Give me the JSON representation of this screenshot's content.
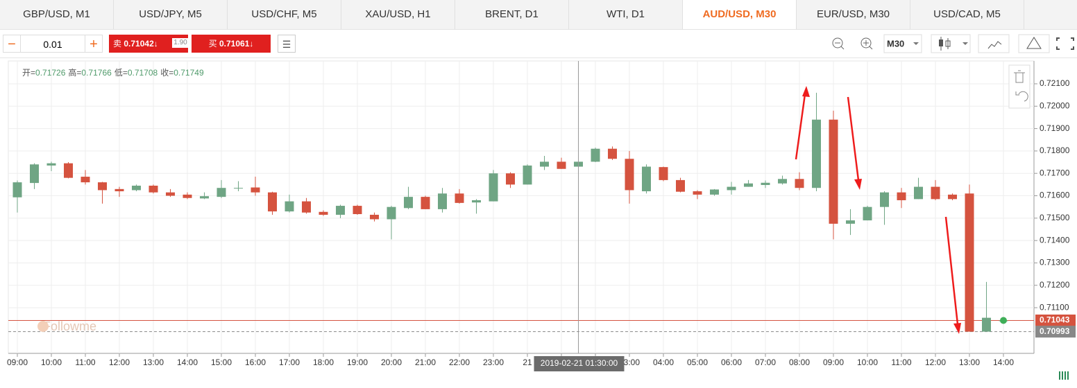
{
  "tabs": [
    "GBP/USD, M1",
    "USD/JPY, M5",
    "USD/CHF, M5",
    "XAU/USD, H1",
    "BRENT, D1",
    "WTI, D1",
    "AUD/USD, M30",
    "EUR/USD, M30",
    "USD/CAD, M5"
  ],
  "toolbar": {
    "minus": "−",
    "lot": "0.01",
    "plus": "+",
    "sell": {
      "label": "卖",
      "price": "0.71042↓"
    },
    "spread": "1.90",
    "buy": {
      "label": "买",
      "price": "0.71061↓"
    },
    "timeframe": "M30"
  },
  "chart_data": {
    "type": "candlestick",
    "ohlc_info": [
      {
        "label": "开=",
        "value": "0.71726"
      },
      {
        "label": "高=",
        "value": "0.71766"
      },
      {
        "label": "低=",
        "value": "0.71708"
      },
      {
        "label": "收=",
        "value": "0.71749"
      }
    ],
    "watermark": "Followme",
    "crosshair_label": "2019-02-21 01:30:00",
    "x_labels": [
      "09:00",
      "10:00",
      "11:00",
      "12:00",
      "13:00",
      "14:00",
      "15:00",
      "16:00",
      "17:00",
      "18:00",
      "19:00",
      "20:00",
      "21:00",
      "22:00",
      "23:00",
      "21",
      null,
      null,
      "03:00",
      "04:00",
      "05:00",
      "06:00",
      "07:00",
      "08:00",
      "09:00",
      "10:00",
      "11:00",
      "12:00",
      "13:00",
      "14:00"
    ],
    "open": [
      0.71593,
      0.71657,
      0.71735,
      0.71745,
      0.71685,
      0.7166,
      0.7163,
      0.71625,
      0.71645,
      0.71615,
      0.71605,
      0.71588,
      0.71595,
      0.71632,
      0.71637,
      0.71615,
      0.7153,
      0.71575,
      0.71528,
      0.71515,
      0.71555,
      0.71515,
      0.71495,
      0.71545,
      0.71595,
      0.7154,
      0.7161,
      0.7157,
      0.71575,
      0.717,
      0.7165,
      0.7173,
      0.71752,
      0.7173,
      0.71752,
      0.7181,
      0.71765,
      0.7162,
      0.71728,
      0.7167,
      0.7162,
      0.71605,
      0.71625,
      0.7164,
      0.71648,
      0.71655,
      0.71675,
      0.71635,
      0.7194,
      0.71475,
      0.7149,
      0.7155,
      0.71615,
      0.71585,
      0.7164,
      0.71605,
      0.7161,
      0.70993,
      0.7104
    ],
    "high": [
      0.71668,
      0.71745,
      0.71752,
      0.7175,
      0.71715,
      0.71662,
      0.7164,
      0.7165,
      0.7165,
      0.7163,
      0.71615,
      0.71615,
      0.7167,
      0.71665,
      0.71685,
      0.71618,
      0.71605,
      0.7159,
      0.71535,
      0.7156,
      0.7156,
      0.71525,
      0.71555,
      0.7164,
      0.716,
      0.71635,
      0.7163,
      0.71585,
      0.71715,
      0.71705,
      0.7174,
      0.71778,
      0.7177,
      0.7176,
      0.71815,
      0.7182,
      0.718,
      0.7174,
      0.7173,
      0.7168,
      0.71625,
      0.7163,
      0.71662,
      0.7167,
      0.71668,
      0.7169,
      0.71705,
      0.7206,
      0.7198,
      0.7154,
      0.71555,
      0.7162,
      0.71635,
      0.7168,
      0.7167,
      0.7161,
      0.7165,
      0.71215,
      0.7105
    ],
    "low": [
      0.71525,
      0.7163,
      0.7171,
      0.71678,
      0.7165,
      0.71565,
      0.71595,
      0.7162,
      0.7161,
      0.71595,
      0.71585,
      0.71585,
      0.7159,
      0.7162,
      0.716,
      0.71515,
      0.71525,
      0.7152,
      0.7151,
      0.715,
      0.71515,
      0.71485,
      0.71405,
      0.7154,
      0.7154,
      0.71525,
      0.71565,
      0.7152,
      0.71575,
      0.71635,
      0.7165,
      0.71715,
      0.7172,
      0.71705,
      0.7175,
      0.7176,
      0.71565,
      0.7161,
      0.71665,
      0.71615,
      0.71585,
      0.716,
      0.71605,
      0.7164,
      0.71635,
      0.7165,
      0.71625,
      0.7162,
      0.71405,
      0.71425,
      0.7149,
      0.7147,
      0.71545,
      0.71585,
      0.7158,
      0.7158,
      0.70993,
      0.70993,
      0.7104
    ],
    "close": [
      0.7166,
      0.7174,
      0.71745,
      0.7168,
      0.7166,
      0.71625,
      0.7162,
      0.71645,
      0.71615,
      0.716,
      0.7159,
      0.71598,
      0.71635,
      0.71635,
      0.71615,
      0.7153,
      0.71575,
      0.71525,
      0.71515,
      0.71555,
      0.71518,
      0.71495,
      0.7155,
      0.71595,
      0.7154,
      0.7161,
      0.71568,
      0.7158,
      0.717,
      0.7165,
      0.71735,
      0.71752,
      0.7172,
      0.71752,
      0.7181,
      0.71765,
      0.71625,
      0.7173,
      0.7167,
      0.71618,
      0.71605,
      0.71628,
      0.7164,
      0.71655,
      0.71658,
      0.71675,
      0.71635,
      0.7194,
      0.71475,
      0.7149,
      0.7155,
      0.71615,
      0.7158,
      0.7164,
      0.71585,
      0.71585,
      0.70993,
      0.71055,
      0.71043
    ],
    "up_color": "#6fa584",
    "down_color": "#d5533f",
    "ylim": [
      0.70896,
      0.72202
    ],
    "yticks": [
      {
        "value": 0.711,
        "label": "0.71100"
      },
      {
        "value": 0.712,
        "label": "0.71200"
      },
      {
        "value": 0.713,
        "label": "0.71300"
      },
      {
        "value": 0.714,
        "label": "0.71400"
      },
      {
        "value": 0.715,
        "label": "0.71500"
      },
      {
        "value": 0.716,
        "label": "0.71600"
      },
      {
        "value": 0.717,
        "label": "0.71700"
      },
      {
        "value": 0.718,
        "label": "0.71800"
      },
      {
        "value": 0.719,
        "label": "0.71900"
      },
      {
        "value": 0.72,
        "label": "0.72000"
      },
      {
        "value": 0.721,
        "label": "0.72100"
      }
    ],
    "grid": true,
    "price_lines": [
      {
        "value": 0.71043,
        "color": "#d5533f",
        "style": "solid"
      },
      {
        "value": 0.70993,
        "color": "#888888",
        "style": "dashed"
      }
    ]
  }
}
